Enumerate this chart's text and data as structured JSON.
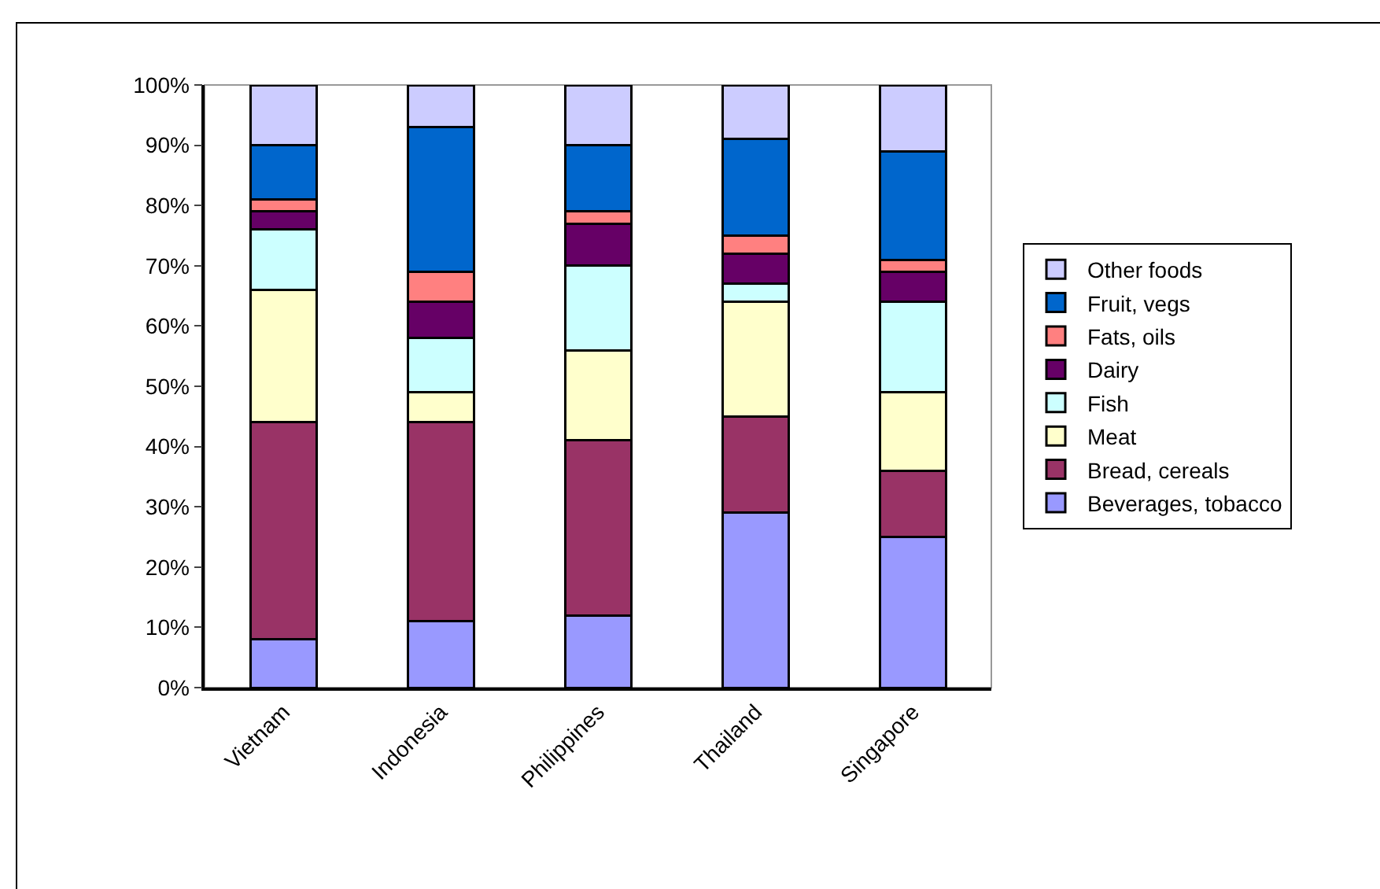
{
  "chart_data": {
    "type": "bar",
    "stacked": true,
    "categories": [
      "Vietnam",
      "Indonesia",
      "Philippines",
      "Thailand",
      "Singapore"
    ],
    "series": [
      {
        "name": "Beverages, tobacco",
        "color": "#9999ff",
        "values": [
          8,
          11,
          12,
          29,
          25
        ]
      },
      {
        "name": "Bread, cereals",
        "color": "#993366",
        "values": [
          36,
          33,
          29,
          16,
          11
        ]
      },
      {
        "name": "Meat",
        "color": "#ffffcc",
        "values": [
          22,
          5,
          15,
          19,
          13
        ]
      },
      {
        "name": "Fish",
        "color": "#ccffff",
        "values": [
          10,
          9,
          14,
          3,
          15
        ]
      },
      {
        "name": "Dairy",
        "color": "#660066",
        "values": [
          3,
          6,
          7,
          5,
          5
        ]
      },
      {
        "name": "Fats, oils",
        "color": "#ff8080",
        "values": [
          2,
          5,
          2,
          3,
          2
        ]
      },
      {
        "name": "Fruit, vegs",
        "color": "#0066cc",
        "values": [
          9,
          24,
          11,
          16,
          18
        ]
      },
      {
        "name": "Other foods",
        "color": "#ccccff",
        "values": [
          10,
          7,
          10,
          9,
          11
        ]
      }
    ],
    "ylim": [
      0,
      100
    ],
    "yticks": [
      {
        "value": 0,
        "label": "0%"
      },
      {
        "value": 10,
        "label": "10%"
      },
      {
        "value": 20,
        "label": "20%"
      },
      {
        "value": 30,
        "label": "30%"
      },
      {
        "value": 40,
        "label": "40%"
      },
      {
        "value": 50,
        "label": "50%"
      },
      {
        "value": 60,
        "label": "60%"
      },
      {
        "value": 70,
        "label": "70%"
      },
      {
        "value": 80,
        "label": "80%"
      },
      {
        "value": 90,
        "label": "90%"
      },
      {
        "value": 100,
        "label": "100%"
      }
    ],
    "grid": false,
    "legend": "right"
  }
}
